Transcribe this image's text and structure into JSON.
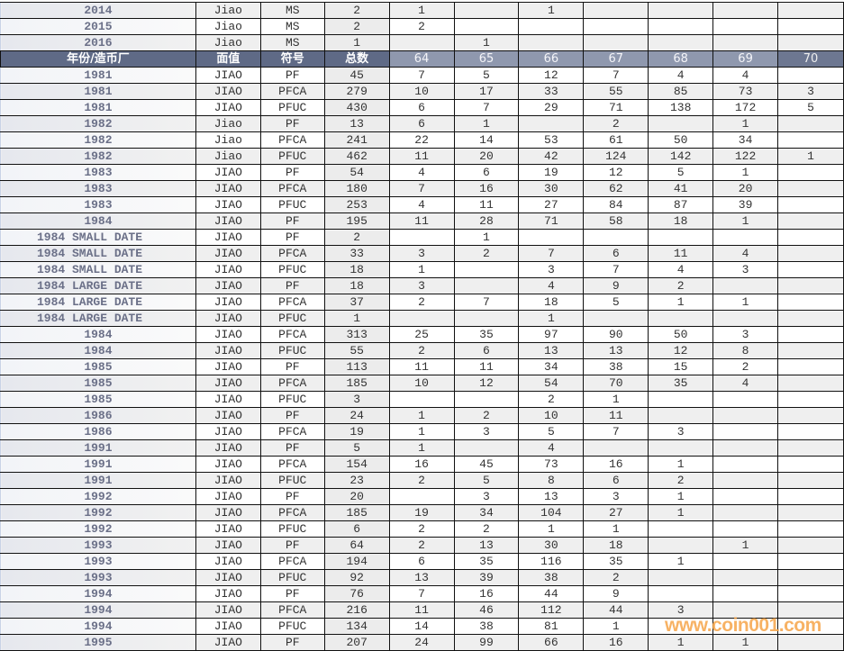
{
  "header": [
    "年份/造币厂",
    "面值",
    "符号",
    "总数",
    "64",
    "65",
    "66",
    "67",
    "68",
    "69",
    "70"
  ],
  "rows_before_header": [
    [
      "2014",
      "Jiao",
      "MS",
      "2",
      "1",
      "",
      "1",
      "",
      "",
      "",
      ""
    ],
    [
      "2015",
      "Jiao",
      "MS",
      "2",
      "2",
      "",
      "",
      "",
      "",
      "",
      ""
    ],
    [
      "2016",
      "Jiao",
      "MS",
      "1",
      "",
      "1",
      "",
      "",
      "",
      "",
      ""
    ]
  ],
  "rows": [
    [
      "1981",
      "JIAO",
      "PF",
      "45",
      "7",
      "5",
      "12",
      "7",
      "4",
      "4",
      ""
    ],
    [
      "1981",
      "JIAO",
      "PFCA",
      "279",
      "10",
      "17",
      "33",
      "55",
      "85",
      "73",
      "3"
    ],
    [
      "1981",
      "JIAO",
      "PFUC",
      "430",
      "6",
      "7",
      "29",
      "71",
      "138",
      "172",
      "5"
    ],
    [
      "1982",
      "Jiao",
      "PF",
      "13",
      "6",
      "1",
      "",
      "2",
      "",
      "1",
      ""
    ],
    [
      "1982",
      "Jiao",
      "PFCA",
      "241",
      "22",
      "14",
      "53",
      "61",
      "50",
      "34",
      ""
    ],
    [
      "1982",
      "Jiao",
      "PFUC",
      "462",
      "11",
      "20",
      "42",
      "124",
      "142",
      "122",
      "1"
    ],
    [
      "1983",
      "JIAO",
      "PF",
      "54",
      "4",
      "6",
      "19",
      "12",
      "5",
      "1",
      ""
    ],
    [
      "1983",
      "JIAO",
      "PFCA",
      "180",
      "7",
      "16",
      "30",
      "62",
      "41",
      "20",
      ""
    ],
    [
      "1983",
      "JIAO",
      "PFUC",
      "253",
      "4",
      "11",
      "27",
      "84",
      "87",
      "39",
      ""
    ],
    [
      "1984",
      "JIAO",
      "PF",
      "195",
      "11",
      "28",
      "71",
      "58",
      "18",
      "1",
      ""
    ],
    [
      "1984 SMALL DATE",
      "JIAO",
      "PF",
      "2",
      "",
      "1",
      "",
      "",
      "",
      "",
      ""
    ],
    [
      "1984 SMALL DATE",
      "JIAO",
      "PFCA",
      "33",
      "3",
      "2",
      "7",
      "6",
      "11",
      "4",
      ""
    ],
    [
      "1984 SMALL DATE",
      "JIAO",
      "PFUC",
      "18",
      "1",
      "",
      "3",
      "7",
      "4",
      "3",
      ""
    ],
    [
      "1984 LARGE DATE",
      "JIAO",
      "PF",
      "18",
      "3",
      "",
      "4",
      "9",
      "2",
      "",
      ""
    ],
    [
      "1984 LARGE DATE",
      "JIAO",
      "PFCA",
      "37",
      "2",
      "7",
      "18",
      "5",
      "1",
      "1",
      ""
    ],
    [
      "1984 LARGE DATE",
      "JIAO",
      "PFUC",
      "1",
      "",
      "",
      "1",
      "",
      "",
      "",
      ""
    ],
    [
      "1984",
      "JIAO",
      "PFCA",
      "313",
      "25",
      "35",
      "97",
      "90",
      "50",
      "3",
      ""
    ],
    [
      "1984",
      "JIAO",
      "PFUC",
      "55",
      "2",
      "6",
      "13",
      "13",
      "12",
      "8",
      ""
    ],
    [
      "1985",
      "JIAO",
      "PF",
      "113",
      "11",
      "11",
      "34",
      "38",
      "15",
      "2",
      ""
    ],
    [
      "1985",
      "JIAO",
      "PFCA",
      "185",
      "10",
      "12",
      "54",
      "70",
      "35",
      "4",
      ""
    ],
    [
      "1985",
      "JIAO",
      "PFUC",
      "3",
      "",
      "",
      "2",
      "1",
      "",
      "",
      ""
    ],
    [
      "1986",
      "JIAO",
      "PF",
      "24",
      "1",
      "2",
      "10",
      "11",
      "",
      "",
      ""
    ],
    [
      "1986",
      "JIAO",
      "PFCA",
      "19",
      "1",
      "3",
      "5",
      "7",
      "3",
      "",
      ""
    ],
    [
      "1991",
      "JIAO",
      "PF",
      "5",
      "1",
      "",
      "4",
      "",
      "",
      "",
      ""
    ],
    [
      "1991",
      "JIAO",
      "PFCA",
      "154",
      "16",
      "45",
      "73",
      "16",
      "1",
      "",
      ""
    ],
    [
      "1991",
      "JIAO",
      "PFUC",
      "23",
      "2",
      "5",
      "8",
      "6",
      "2",
      "",
      ""
    ],
    [
      "1992",
      "JIAO",
      "PF",
      "20",
      "",
      "3",
      "13",
      "3",
      "1",
      "",
      ""
    ],
    [
      "1992",
      "JIAO",
      "PFCA",
      "185",
      "19",
      "34",
      "104",
      "27",
      "1",
      "",
      ""
    ],
    [
      "1992",
      "JIAO",
      "PFUC",
      "6",
      "2",
      "2",
      "1",
      "1",
      "",
      "",
      ""
    ],
    [
      "1993",
      "JIAO",
      "PF",
      "64",
      "2",
      "13",
      "30",
      "18",
      "",
      "1",
      ""
    ],
    [
      "1993",
      "JIAO",
      "PFCA",
      "194",
      "6",
      "35",
      "116",
      "35",
      "1",
      "",
      ""
    ],
    [
      "1993",
      "JIAO",
      "PFUC",
      "92",
      "13",
      "39",
      "38",
      "2",
      "",
      "",
      ""
    ],
    [
      "1994",
      "JIAO",
      "PF",
      "76",
      "7",
      "16",
      "44",
      "9",
      "",
      "",
      ""
    ],
    [
      "1994",
      "JIAO",
      "PFCA",
      "216",
      "11",
      "46",
      "112",
      "44",
      "3",
      "",
      ""
    ],
    [
      "1994",
      "JIAO",
      "PFUC",
      "134",
      "14",
      "38",
      "81",
      "1",
      "",
      "",
      ""
    ],
    [
      "1995",
      "JIAO",
      "PF",
      "207",
      "24",
      "99",
      "66",
      "16",
      "1",
      "1",
      ""
    ]
  ],
  "watermark": "www.coin001.com",
  "colors": {
    "header_dark": "#5f6a86",
    "header_light": "#8f98ae",
    "year_text": "#6b7088",
    "watermark": "#f6a54a"
  }
}
